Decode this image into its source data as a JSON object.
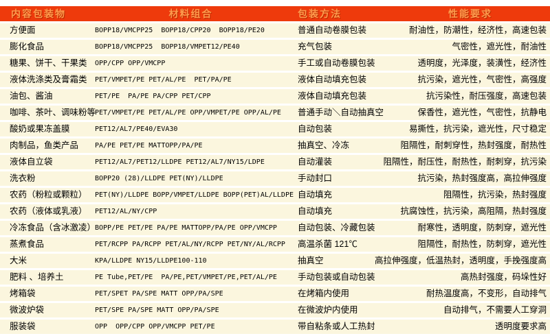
{
  "table": {
    "columns": [
      {
        "label": "内容包装物"
      },
      {
        "label": "材料组合"
      },
      {
        "label": "包装方法"
      },
      {
        "label": "性能要求"
      }
    ],
    "rows": [
      {
        "item": "方便面",
        "materials": "BOPP18/VMCPP25  BOPP18/CPP20  BOPP18/PE20",
        "method": "普通自动卷膜包装",
        "requirements": "耐油性，防潮性，经济性，高速包装"
      },
      {
        "item": "膨化食品",
        "materials": "BOPP18/VMCPP25  BOPP18/VMPET12/PE40",
        "method": "充气包装",
        "requirements": "气密性，遮光性，耐油性"
      },
      {
        "item": "糖果、饼干、干果类",
        "materials": "OPP/CPP OPP/VMCPP",
        "method": "手工或自动卷膜包装",
        "requirements": "透明度，光泽度，装潢性，经济性"
      },
      {
        "item": "液体洗涤类及膏霜类",
        "materials": "PET/VMPET/PE PET/AL/PE  PET/PA/PE",
        "method": "液体自动填充包装",
        "requirements": "抗污染，遮光性，气密性，高强度"
      },
      {
        "item": "油包、酱油",
        "materials": "PET/PE  PA/PE PA/CPP PET/CPP",
        "method": "液体自动填充包装",
        "requirements": "抗污染性，耐压强度，高速包装"
      },
      {
        "item": "咖啡、茶叶、调味粉等",
        "materials": "PET/VMPET/PE PET/AL/PE OPP/VMPET/PE OPP/AL/PE",
        "method": "普通手动＼自动抽真空",
        "requirements": "保香性，遮光性，气密性，抗静电"
      },
      {
        "item": "酸奶或果冻盖膜",
        "materials": "PET12/AL7/PE40/EVA30",
        "method": "自动包装",
        "requirements": "易撕性，抗污染，遮光性，尺寸稳定"
      },
      {
        "item": "肉制品，鱼类产品",
        "materials": "PA/PE PET/PE MATTOPP/PA/PE",
        "method": "抽真空、冷冻",
        "requirements": "阻隔性，耐刺穿性，热封强度，耐热性"
      },
      {
        "item": "液体自立袋",
        "materials": "PET12/AL7/PET12/LLDPE PET12/AL7/NY15/LDPE",
        "method": "自动灌装",
        "requirements": "阻隔性，耐压性，耐热性，耐刺穿，抗污染"
      },
      {
        "item": "洗衣粉",
        "materials": "BOPP20 (28)/LLDPE PET(NY)/LLDPE",
        "method": "手动封口",
        "requirements": "抗污染，热封强度高，高拉伸强度"
      },
      {
        "item": "农药（粉粒或颗粒）",
        "materials": "PET(NY)/LLDPE BOPP/VMPET/LLDPE BOPP(PET)AL/LLDPE",
        "method": "自动填充",
        "requirements": "阻隔性，抗污染，热封强度"
      },
      {
        "item": "农药（液体或乳液）",
        "materials": "PET12/AL/NY/CPP",
        "method": "自动填充",
        "requirements": "抗腐蚀性，抗污染，高阻隔，热封强度"
      },
      {
        "item": "冷冻食品（含冰激凌）",
        "materials": "BOPP/PE PET/PE PA/PE MATTOPP/PA/PE OPP/VMCPP",
        "method": "自动包装、冷藏包装",
        "requirements": "耐寒性，透明度，防刺穿，遮光性"
      },
      {
        "item": "蒸煮食品",
        "materials": "PET/RCPP PA/RCPP PET/AL/NY/RCPP PET/NY/AL/RCPP",
        "method": "高温杀菌 121℃",
        "requirements": "阻隔性，耐热性，防刺穿，遮光性"
      },
      {
        "item": "大米",
        "materials": "KPA/LLDPE NY15/LLDPE100-110",
        "method": "抽真空",
        "requirements": "高拉伸强度，低温热封，透明度，手挽强度高"
      },
      {
        "item": "肥料 、培养土",
        "materials": "PE Tube,PET/PE  PA/PE,PET/VMPET/PE,PET/AL/PE",
        "method": "手动包装或自动包装",
        "requirements": "高热封强度，码垛性好"
      },
      {
        "item": "烤箱袋",
        "materials": "PET/SPET PA/SPE MATT OPP/PA/SPE",
        "method": "在烤箱内使用",
        "requirements": "耐热温度高，不变形，自动排气"
      },
      {
        "item": "微波炉袋",
        "materials": "PET/SPE PA/SPE MATT OPP/PA/SPE",
        "method": "在微波炉内使用",
        "requirements": "自动排气，不需要人工穿洞"
      },
      {
        "item": "服装袋",
        "materials": "OPP  OPP/CPP OPP/VMCPP PET/PE",
        "method": "带自粘条或人工热封",
        "requirements": "透明度要求高"
      }
    ]
  },
  "colors": {
    "header_bg": "#ee3a0c",
    "header_text": "#ff9b4d",
    "row_bg": "#fbf6de",
    "separator": "#ffffff",
    "body_text": "#000000"
  }
}
